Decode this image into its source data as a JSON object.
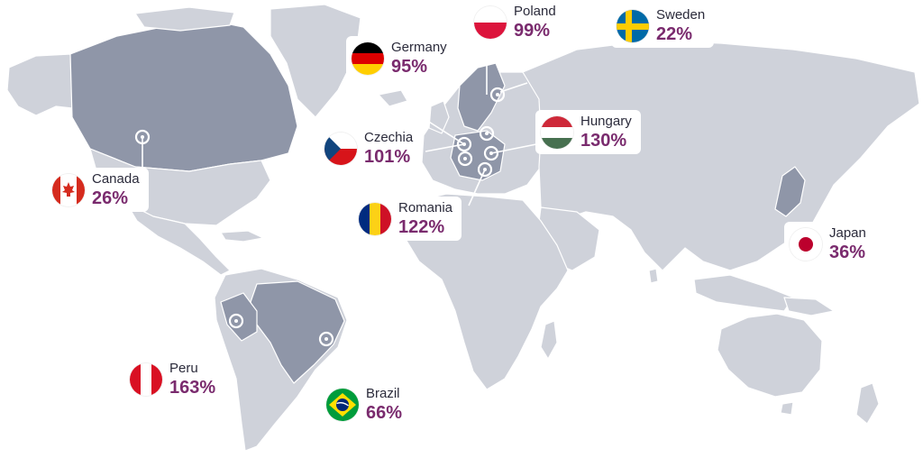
{
  "countries": [
    {
      "id": "poland",
      "name": "Poland",
      "percent": "99%"
    },
    {
      "id": "sweden",
      "name": "Sweden",
      "percent": "22%"
    },
    {
      "id": "germany",
      "name": "Germany",
      "percent": "95%"
    },
    {
      "id": "czechia",
      "name": "Czechia",
      "percent": "101%"
    },
    {
      "id": "hungary",
      "name": "Hungary",
      "percent": "130%"
    },
    {
      "id": "canada",
      "name": "Canada",
      "percent": "26%"
    },
    {
      "id": "romania",
      "name": "Romania",
      "percent": "122%"
    },
    {
      "id": "japan",
      "name": "Japan",
      "percent": "36%"
    },
    {
      "id": "peru",
      "name": "Peru",
      "percent": "163%"
    },
    {
      "id": "brazil",
      "name": "Brazil",
      "percent": "66%"
    }
  ],
  "colors": {
    "land": "#cfd2da",
    "land_highlight": "#8f96a8",
    "percent_text": "#7a2b6e",
    "label_text": "#2b2b3b"
  }
}
